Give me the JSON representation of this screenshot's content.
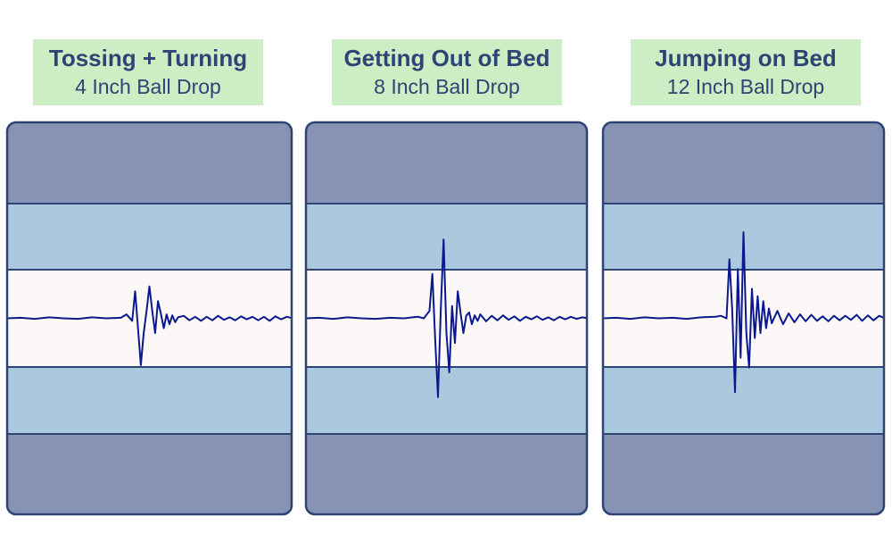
{
  "colors": {
    "outer_band": "#8693b5",
    "middle_band": "#abc9de",
    "center_band": "#fdf8f8",
    "border": "#2e4474",
    "waveform": "#0a1a8c",
    "label_bg": "#cdeec4",
    "label_text": "#2e4474"
  },
  "chart_data": [
    {
      "type": "line",
      "title": "Tossing + Turning",
      "subtitle": "4 Inch Ball Drop",
      "xlim": [
        0,
        100
      ],
      "ylim": [
        -4,
        4
      ],
      "grid": false,
      "series": [
        {
          "x": [
            0,
            5,
            10,
            15,
            20,
            25,
            30,
            35,
            40,
            42,
            44,
            45,
            46,
            47,
            48,
            49,
            50,
            51,
            52,
            53,
            54,
            55,
            56,
            57,
            58,
            59,
            60,
            62,
            64,
            66,
            68,
            70,
            72,
            74,
            76,
            78,
            80,
            82,
            84,
            86,
            88,
            90,
            92,
            94,
            96,
            98,
            100
          ],
          "values": [
            0,
            0.01,
            -0.01,
            0.02,
            0,
            -0.01,
            0.02,
            0,
            0.01,
            0.08,
            -0.05,
            0.55,
            -0.2,
            -0.95,
            -0.3,
            0.15,
            0.65,
            0.15,
            -0.3,
            0.35,
            0.1,
            -0.2,
            0.08,
            -0.12,
            0.06,
            -0.08,
            0.02,
            0.05,
            -0.04,
            0.03,
            -0.05,
            0.03,
            -0.04,
            0.05,
            -0.03,
            0.02,
            -0.04,
            0.04,
            -0.02,
            0.03,
            -0.04,
            0.03,
            -0.05,
            0.04,
            -0.02,
            0.03,
            0
          ]
        }
      ]
    },
    {
      "type": "line",
      "title": "Getting Out of Bed",
      "subtitle": "8 Inch Ball Drop",
      "xlim": [
        0,
        100
      ],
      "ylim": [
        -4,
        4
      ],
      "grid": false,
      "series": [
        {
          "x": [
            0,
            5,
            10,
            15,
            20,
            25,
            30,
            35,
            38,
            40,
            42,
            44,
            45,
            46,
            47,
            48,
            49,
            50,
            51,
            52,
            53,
            54,
            55,
            56,
            57,
            58,
            59,
            60,
            61,
            62,
            64,
            66,
            68,
            70,
            72,
            74,
            76,
            78,
            80,
            82,
            84,
            86,
            88,
            90,
            92,
            94,
            96,
            98,
            100
          ],
          "values": [
            0,
            0.01,
            -0.01,
            0.02,
            0,
            -0.01,
            0.01,
            0,
            0.02,
            0.03,
            0,
            0.15,
            0.9,
            -0.4,
            -1.6,
            0.2,
            1.6,
            -0.3,
            -1.1,
            0.25,
            -0.5,
            0.55,
            0.1,
            -0.3,
            0.05,
            0.12,
            -0.12,
            0.06,
            -0.05,
            0.08,
            -0.06,
            0.05,
            -0.04,
            0.06,
            -0.03,
            0.04,
            -0.05,
            0.03,
            -0.02,
            0.04,
            -0.03,
            0.02,
            -0.04,
            0.03,
            -0.02,
            0.03,
            -0.01,
            0.02,
            0
          ]
        }
      ]
    },
    {
      "type": "line",
      "title": "Jumping on Bed",
      "subtitle": "12 Inch Ball Drop",
      "xlim": [
        0,
        100
      ],
      "ylim": [
        -4,
        4
      ],
      "grid": false,
      "series": [
        {
          "x": [
            0,
            5,
            10,
            15,
            20,
            25,
            30,
            35,
            40,
            42,
            44,
            45,
            46,
            47,
            48,
            49,
            50,
            51,
            52,
            53,
            54,
            55,
            56,
            57,
            58,
            59,
            60,
            62,
            64,
            66,
            68,
            70,
            72,
            74,
            76,
            78,
            80,
            82,
            84,
            86,
            88,
            90,
            92,
            94,
            96,
            98,
            100
          ],
          "values": [
            0,
            0.01,
            -0.01,
            0.02,
            0,
            0.01,
            -0.01,
            0.02,
            0.03,
            0.05,
            0,
            1.2,
            0.2,
            -1.5,
            1.0,
            -0.8,
            1.75,
            -0.3,
            -1.0,
            0.6,
            -0.4,
            0.45,
            -0.3,
            0.35,
            -0.2,
            0.2,
            -0.1,
            0.15,
            -0.12,
            0.1,
            -0.08,
            0.08,
            -0.06,
            0.07,
            -0.05,
            0.04,
            -0.06,
            0.05,
            -0.04,
            0.05,
            -0.03,
            0.07,
            -0.05,
            0.06,
            -0.04,
            0.05,
            0
          ]
        }
      ]
    }
  ]
}
